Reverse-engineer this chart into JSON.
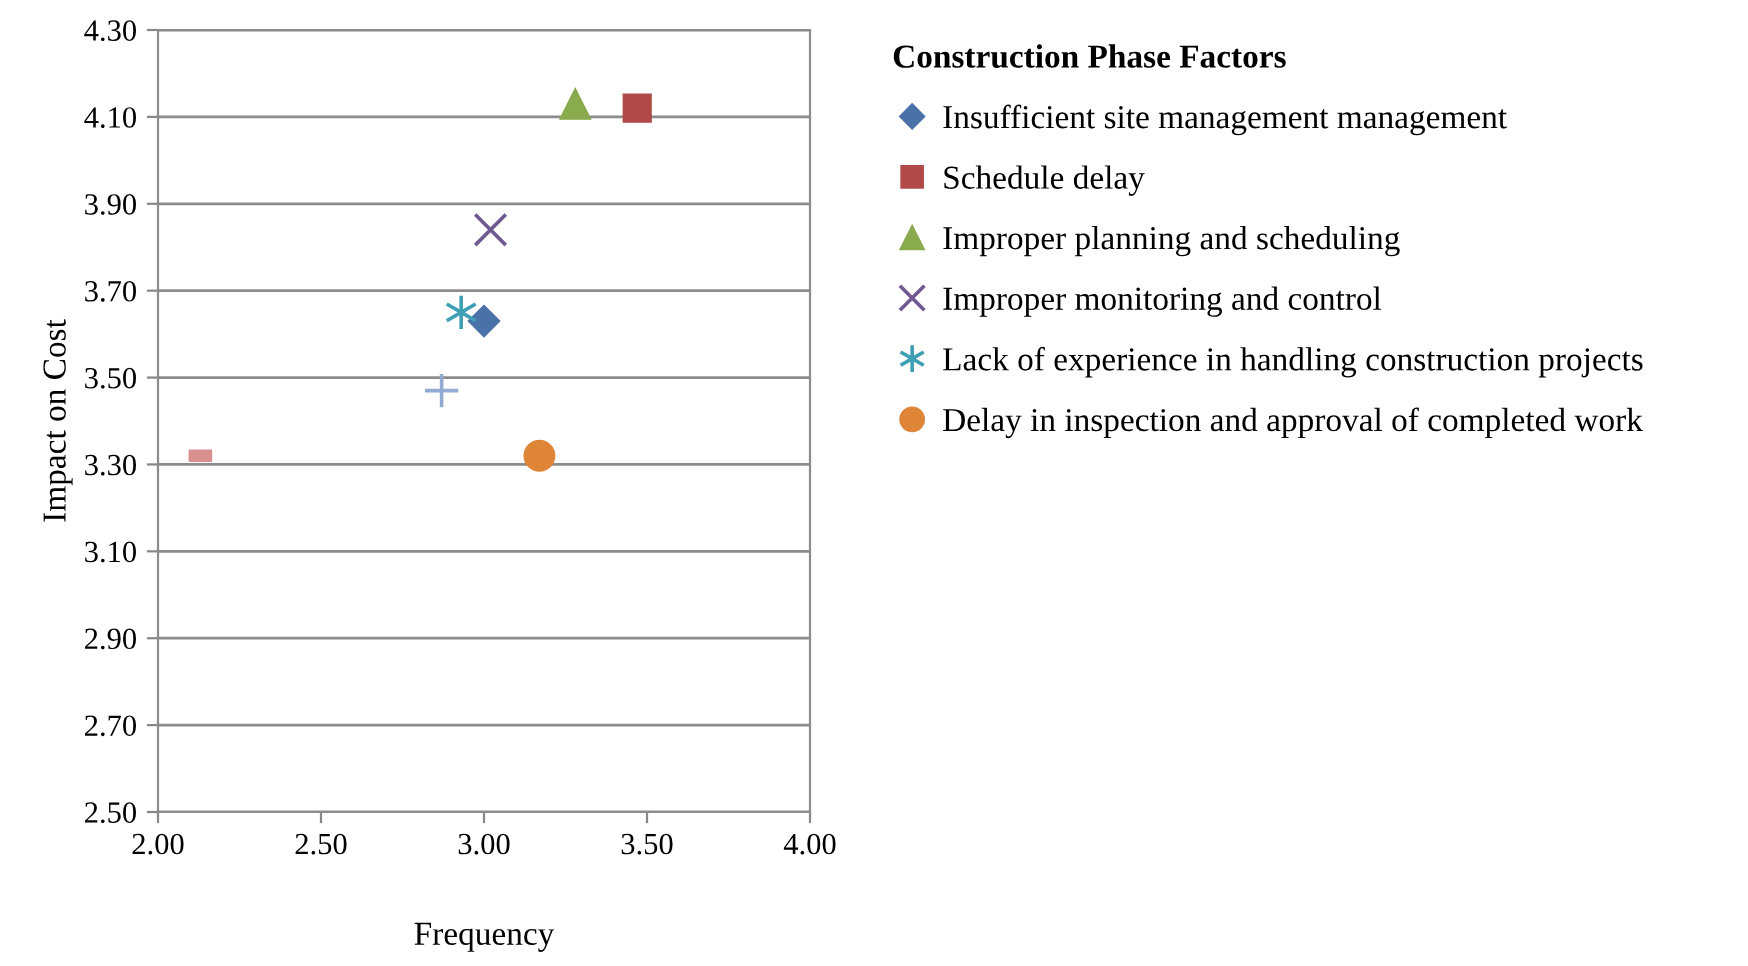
{
  "chart_data": {
    "type": "scatter",
    "xlabel": "Frequency",
    "ylabel": "Impact on Cost",
    "legend_title": "Construction Phase Factors",
    "xlim": [
      2.0,
      4.0
    ],
    "ylim": [
      2.5,
      4.3
    ],
    "xticks": [
      {
        "value": 2.0,
        "label": "2.00"
      },
      {
        "value": 2.5,
        "label": "2.50"
      },
      {
        "value": 3.0,
        "label": "3.00"
      },
      {
        "value": 3.5,
        "label": "3.50"
      },
      {
        "value": 4.0,
        "label": "4.00"
      }
    ],
    "yticks": [
      {
        "value": 2.5,
        "label": "2.50"
      },
      {
        "value": 2.7,
        "label": "2.70"
      },
      {
        "value": 2.9,
        "label": "2.90"
      },
      {
        "value": 3.1,
        "label": "3.10"
      },
      {
        "value": 3.3,
        "label": "3.30"
      },
      {
        "value": 3.5,
        "label": "3.50"
      },
      {
        "value": 3.7,
        "label": "3.70"
      },
      {
        "value": 3.9,
        "label": "3.90"
      },
      {
        "value": 4.1,
        "label": "4.10"
      },
      {
        "value": 4.3,
        "label": "4.30"
      }
    ],
    "grid": "y",
    "legend": "right",
    "series": [
      {
        "name": "Insufficient site management management",
        "color": "#4a72a8",
        "marker": "diamond",
        "x": [
          3.0
        ],
        "values": [
          3.63
        ]
      },
      {
        "name": "Schedule delay",
        "color": "#b04a48",
        "marker": "square",
        "x": [
          3.47
        ],
        "values": [
          4.12
        ]
      },
      {
        "name": "Improper planning and scheduling",
        "color": "#8aaa4e",
        "marker": "triangle",
        "x": [
          3.28
        ],
        "values": [
          4.13
        ]
      },
      {
        "name": "Improper monitoring and control",
        "color": "#6e5990",
        "marker": "cross",
        "x": [
          3.02
        ],
        "values": [
          3.84
        ]
      },
      {
        "name": "Lack of experience in handling construction projects",
        "color": "#3f9fb5",
        "x": [
          2.93
        ],
        "values": [
          3.65
        ]
      },
      {
        "name": "Delay in inspection and approval of completed work",
        "color": "#df8538",
        "marker": "circle",
        "x": [
          3.17
        ],
        "values": [
          3.32
        ]
      },
      {
        "color": "#93aad3",
        "x": [
          2.87
        ],
        "values": [
          3.47
        ]
      },
      {
        "color": "#d98f8e",
        "marker": "square",
        "x": [
          2.13
        ],
        "values": [
          3.32
        ]
      }
    ]
  }
}
